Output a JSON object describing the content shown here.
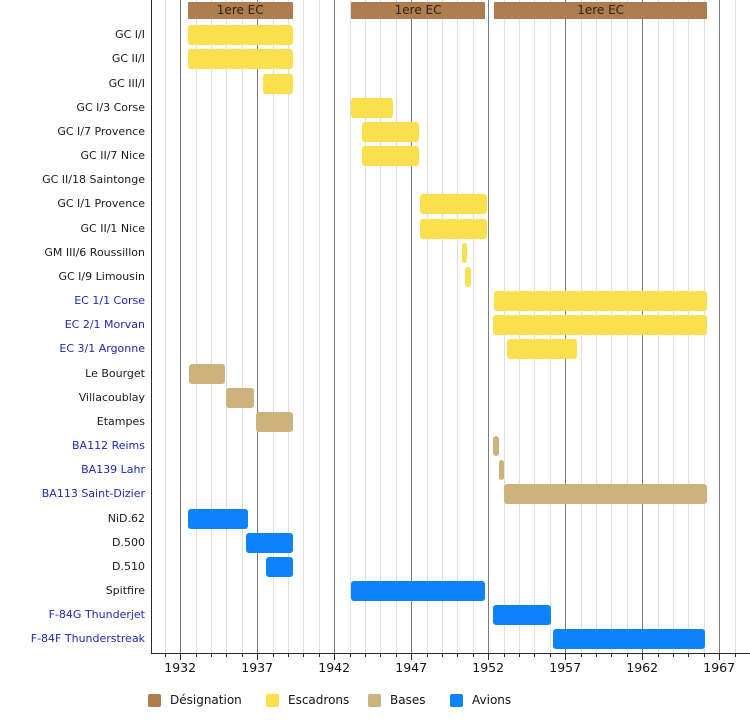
{
  "chart_data": {
    "type": "bar",
    "subtype": "timeline-gantt",
    "title": "",
    "x_axis": {
      "range": [
        1930,
        1969
      ],
      "minor_step": 1,
      "ticks": [
        1932,
        1937,
        1942,
        1947,
        1952,
        1957,
        1962,
        1967
      ],
      "grid": true
    },
    "designation_row": {
      "periods": [
        {
          "label": "1ere EC",
          "start": 1932.5,
          "end": 1939.3
        },
        {
          "label": "1ere EC",
          "start": 1943.1,
          "end": 1951.8
        },
        {
          "label": "1ere EC",
          "start": 1952.4,
          "end": 1966.2
        }
      ]
    },
    "rows": [
      {
        "label": "GC I/I",
        "is_link": false,
        "category": "escadron",
        "periods": [
          {
            "start": 1932.5,
            "end": 1939.3
          }
        ]
      },
      {
        "label": "GC II/I",
        "is_link": false,
        "category": "escadron",
        "periods": [
          {
            "start": 1932.5,
            "end": 1939.3
          }
        ]
      },
      {
        "label": "GC III/I",
        "is_link": false,
        "category": "escadron",
        "periods": [
          {
            "start": 1937.4,
            "end": 1939.3
          }
        ]
      },
      {
        "label": "GC I/3 Corse",
        "is_link": false,
        "category": "escadron",
        "periods": [
          {
            "start": 1943.1,
            "end": 1945.8
          }
        ]
      },
      {
        "label": "GC I/7 Provence",
        "is_link": false,
        "category": "escadron",
        "periods": [
          {
            "start": 1943.8,
            "end": 1947.5
          }
        ]
      },
      {
        "label": "GC II/7 Nice",
        "is_link": false,
        "category": "escadron",
        "periods": [
          {
            "start": 1943.8,
            "end": 1947.5
          }
        ]
      },
      {
        "label": "GC II/18 Saintonge",
        "is_link": false,
        "category": "escadron",
        "periods": []
      },
      {
        "label": "GC I/1 Provence",
        "is_link": false,
        "category": "escadron",
        "periods": [
          {
            "start": 1947.6,
            "end": 1951.9
          }
        ]
      },
      {
        "label": "GC II/1 Nice",
        "is_link": false,
        "category": "escadron",
        "periods": [
          {
            "start": 1947.6,
            "end": 1951.9
          }
        ]
      },
      {
        "label": "GM III/6 Roussillon",
        "is_link": false,
        "category": "escadron",
        "periods": [
          {
            "start": 1950.3,
            "end": 1950.6
          }
        ]
      },
      {
        "label": "GC I/9 Limousin",
        "is_link": false,
        "category": "escadron",
        "periods": [
          {
            "start": 1950.5,
            "end": 1950.9
          }
        ]
      },
      {
        "label": "EC 1/1 Corse",
        "is_link": true,
        "category": "escadron",
        "periods": [
          {
            "start": 1952.4,
            "end": 1966.2
          }
        ]
      },
      {
        "label": "EC 2/1 Morvan",
        "is_link": true,
        "category": "escadron",
        "periods": [
          {
            "start": 1952.3,
            "end": 1966.2
          }
        ]
      },
      {
        "label": "EC 3/1 Argonne",
        "is_link": true,
        "category": "escadron",
        "periods": [
          {
            "start": 1953.2,
            "end": 1957.8
          }
        ]
      },
      {
        "label": "Le Bourget",
        "is_link": false,
        "category": "base",
        "periods": [
          {
            "start": 1932.6,
            "end": 1934.9
          }
        ]
      },
      {
        "label": "Villacoublay",
        "is_link": false,
        "category": "base",
        "periods": [
          {
            "start": 1935.0,
            "end": 1936.8
          }
        ]
      },
      {
        "label": "Etampes",
        "is_link": false,
        "category": "base",
        "periods": [
          {
            "start": 1936.9,
            "end": 1939.3
          }
        ]
      },
      {
        "label": "BA112 Reims",
        "is_link": true,
        "category": "base",
        "periods": [
          {
            "start": 1952.3,
            "end": 1952.7
          }
        ]
      },
      {
        "label": "BA139 Lahr",
        "is_link": true,
        "category": "base",
        "periods": [
          {
            "start": 1952.7,
            "end": 1953.0
          }
        ]
      },
      {
        "label": "BA113 Saint-Dizier",
        "is_link": true,
        "category": "base",
        "periods": [
          {
            "start": 1953.0,
            "end": 1966.2
          }
        ]
      },
      {
        "label": "NiD.62",
        "is_link": false,
        "category": "avion",
        "periods": [
          {
            "start": 1932.5,
            "end": 1936.4
          }
        ]
      },
      {
        "label": "D.500",
        "is_link": false,
        "category": "avion",
        "periods": [
          {
            "start": 1936.3,
            "end": 1939.3
          }
        ]
      },
      {
        "label": "D.510",
        "is_link": false,
        "category": "avion",
        "periods": [
          {
            "start": 1937.6,
            "end": 1939.3
          }
        ]
      },
      {
        "label": "Spitfire",
        "is_link": false,
        "category": "avion",
        "periods": [
          {
            "start": 1943.1,
            "end": 1951.8
          }
        ]
      },
      {
        "label": "F-84G Thunderjet",
        "is_link": true,
        "category": "avion",
        "periods": [
          {
            "start": 1952.3,
            "end": 1956.1
          }
        ]
      },
      {
        "label": "F-84F Thunderstreak",
        "is_link": true,
        "category": "avion",
        "periods": [
          {
            "start": 1956.2,
            "end": 1966.1
          }
        ]
      }
    ],
    "legend": [
      {
        "label": "Désignation",
        "category": "designation"
      },
      {
        "label": "Escadrons",
        "category": "escadron"
      },
      {
        "label": "Bases",
        "category": "base"
      },
      {
        "label": "Avions",
        "category": "avion"
      }
    ],
    "colors": {
      "designation": "#AE7D4F",
      "escadron": "#FBE04D",
      "base": "#CCB37C",
      "avion": "#0C83FA",
      "link_text": "#1C2BB5",
      "text": "#1B1B1B",
      "grid_minor": "#DEDEDC",
      "grid_major": "#7D7D7D",
      "axis": "#2A2A2A",
      "designation_text": "#33220F"
    }
  }
}
